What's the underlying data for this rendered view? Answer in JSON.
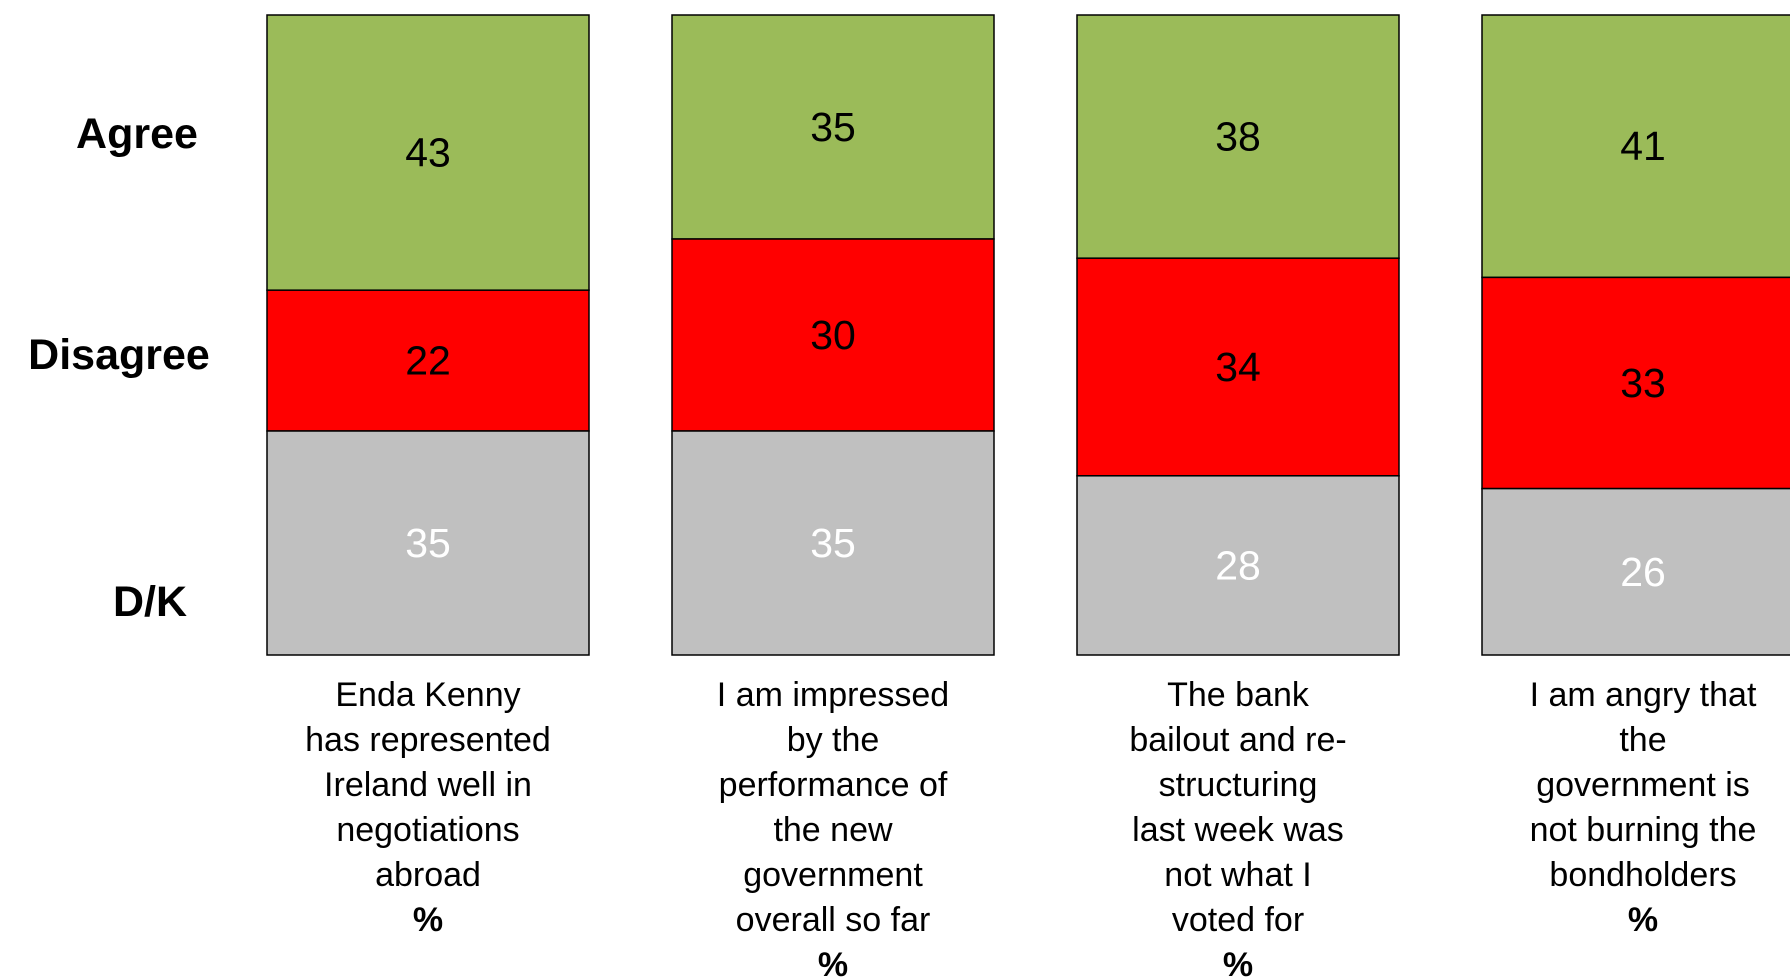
{
  "chart_data": {
    "type": "bar",
    "stacked": true,
    "row_labels": [
      "Agree",
      "Disagree",
      "D/K"
    ],
    "unit_label": "%",
    "categories": [
      "Enda Kenny has represented Ireland well in negotiations abroad",
      "I am impressed by the performance of the new government overall so far",
      "The bank bailout and re-structuring last week was not what I voted for",
      "I am angry that the government is not burning the bondholders"
    ],
    "caption_lines": [
      [
        "Enda Kenny",
        "has represented",
        "Ireland well in",
        "negotiations",
        "abroad"
      ],
      [
        "I am impressed",
        "by the",
        "performance of",
        "the new",
        "government",
        "overall so far"
      ],
      [
        "The bank",
        "bailout and re-",
        "structuring",
        "last week was",
        "not what I",
        "voted for"
      ],
      [
        "I am angry that",
        "the",
        "government is",
        "not burning the",
        "bondholders"
      ]
    ],
    "series": [
      {
        "values": [
          43,
          35,
          38,
          41
        ],
        "color": "#9BBB59",
        "text_color": "#000000"
      },
      {
        "values": [
          22,
          30,
          34,
          33
        ],
        "color": "#FF0000",
        "text_color": "#000000"
      },
      {
        "values": [
          35,
          35,
          28,
          26
        ],
        "color": "#C0C0C0",
        "text_color": "#FFFFFF"
      }
    ],
    "ylim": [
      0,
      100
    ],
    "legend": "none",
    "grid": false
  }
}
